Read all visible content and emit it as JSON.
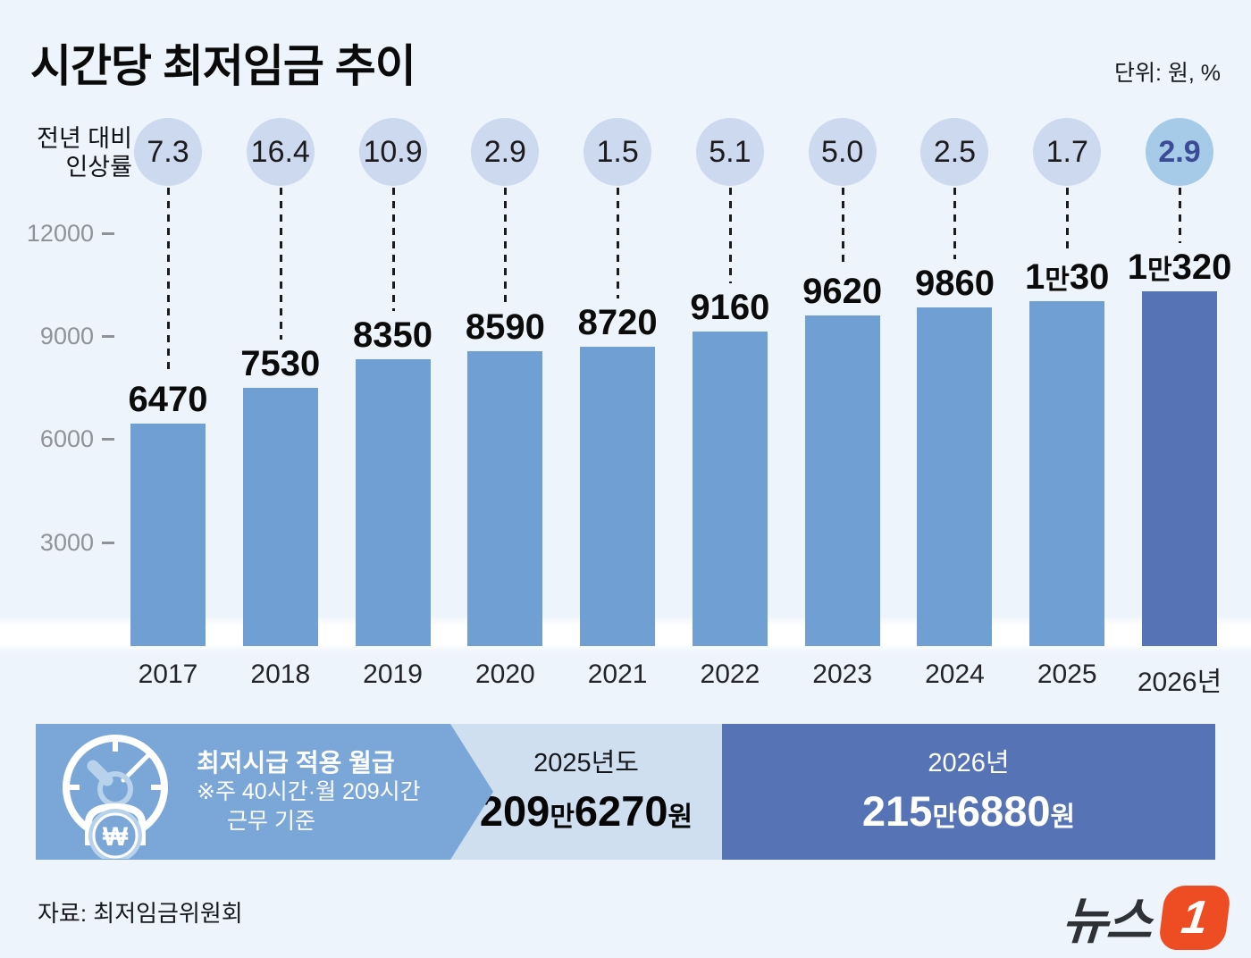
{
  "title": "시간당 최저임금 추이",
  "unit_label": "단위: 원, %",
  "rate_label": {
    "line1": "전년 대비",
    "line2": "인상률"
  },
  "y_axis": {
    "ticks": [
      12000,
      9000,
      6000,
      3000
    ]
  },
  "columns": [
    {
      "year": "2017",
      "rate": "7.3",
      "value": 6470,
      "label": [
        {
          "t": "6470"
        }
      ],
      "highlight": false
    },
    {
      "year": "2018",
      "rate": "16.4",
      "value": 7530,
      "label": [
        {
          "t": "7530"
        }
      ],
      "highlight": false
    },
    {
      "year": "2019",
      "rate": "10.9",
      "value": 8350,
      "label": [
        {
          "t": "8350"
        }
      ],
      "highlight": false
    },
    {
      "year": "2020",
      "rate": "2.9",
      "value": 8590,
      "label": [
        {
          "t": "8590"
        }
      ],
      "highlight": false
    },
    {
      "year": "2021",
      "rate": "1.5",
      "value": 8720,
      "label": [
        {
          "t": "8720"
        }
      ],
      "highlight": false
    },
    {
      "year": "2022",
      "rate": "5.1",
      "value": 9160,
      "label": [
        {
          "t": "9160"
        }
      ],
      "highlight": false
    },
    {
      "year": "2023",
      "rate": "5.0",
      "value": 9620,
      "label": [
        {
          "t": "9620"
        }
      ],
      "highlight": false
    },
    {
      "year": "2024",
      "rate": "2.5",
      "value": 9860,
      "label": [
        {
          "t": "9860"
        }
      ],
      "highlight": false
    },
    {
      "year": "2025",
      "rate": "1.7",
      "value": 10030,
      "label": [
        {
          "t": "1"
        },
        {
          "t": "만",
          "small": true
        },
        {
          "t": "30"
        }
      ],
      "highlight": false
    },
    {
      "year": "2026년",
      "rate": "2.9",
      "value": 10320,
      "label": [
        {
          "t": "1"
        },
        {
          "t": "만",
          "small": true
        },
        {
          "t": "320"
        }
      ],
      "highlight": true
    }
  ],
  "banner": {
    "left": {
      "icon": "clock-won-icon",
      "line1": "최저시급 적용 월급",
      "line2": "※주 40시간·월 209시간",
      "line3": "근무 기준"
    },
    "mid": {
      "year": "2025년도",
      "amount": [
        {
          "t": "209"
        },
        {
          "t": "만",
          "small": true
        },
        {
          "t": "6270"
        },
        {
          "t": "원",
          "small": true
        }
      ]
    },
    "right": {
      "year": "2026년",
      "amount": [
        {
          "t": "215"
        },
        {
          "t": "만",
          "small": true
        },
        {
          "t": "6880"
        },
        {
          "t": "원",
          "small": true
        }
      ]
    }
  },
  "footer": {
    "source": "자료: 최저임금위원회",
    "logo_word": "뉴스",
    "logo_number": "1"
  },
  "colors": {
    "background": "#edf4fb",
    "bar": "#6f9fd3",
    "bar_highlight": "#5674b5",
    "circle": "#ccd9ef",
    "circle_highlight": "#a5cbe9",
    "circle_highlight_text": "#3c4b96",
    "banner_left": "#7aa6d8",
    "banner_mid": "#cfdff0",
    "banner_right": "#5674b5",
    "y_axis_gray": "#8f9399",
    "logo_orange": "#ee4d23"
  },
  "chart_data": {
    "type": "bar",
    "title": "시간당 최저임금 추이",
    "unit": "원, %",
    "categories": [
      "2017",
      "2018",
      "2019",
      "2020",
      "2021",
      "2022",
      "2023",
      "2024",
      "2025",
      "2026"
    ],
    "series": [
      {
        "name": "시간당 최저임금(원)",
        "values": [
          6470,
          7530,
          8350,
          8590,
          8720,
          9160,
          9620,
          9860,
          10030,
          10320
        ]
      },
      {
        "name": "전년 대비 인상률(%)",
        "values": [
          7.3,
          16.4,
          10.9,
          2.9,
          1.5,
          5.1,
          5.0,
          2.5,
          1.7,
          2.9
        ]
      }
    ],
    "ylim": [
      0,
      12000
    ],
    "y_ticks": [
      3000,
      6000,
      9000,
      12000
    ],
    "grid": false,
    "legend_position": "none",
    "annotations": [
      "최저시급 적용 월급 ※주 40시간·월 209시간 근무 기준",
      "2025년도 209만6270원",
      "2026년 215만6880원"
    ],
    "source": "자료: 최저임금위원회"
  }
}
